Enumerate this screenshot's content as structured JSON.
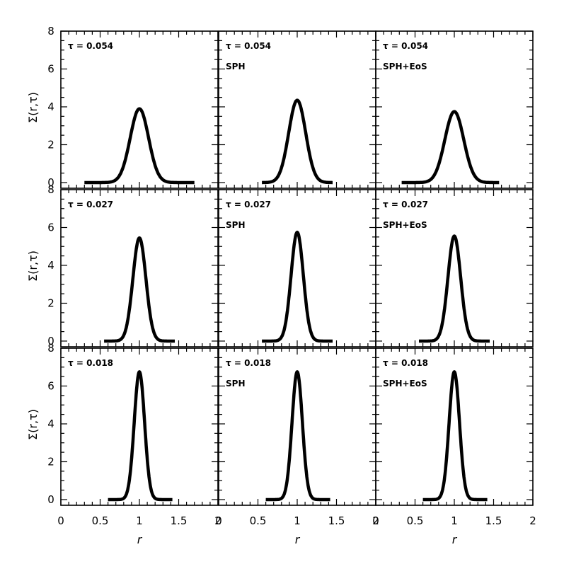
{
  "chart_data": {
    "type": "line",
    "layout": "3x3 grid, shared axes",
    "xlabel": "r",
    "ylabel": "Σ(r,τ)",
    "xlim": [
      0,
      2
    ],
    "ylim": [
      -0.3,
      8
    ],
    "x_ticks_major": [
      0,
      0.5,
      1,
      1.5,
      2
    ],
    "x_tick_labels": [
      "0",
      "0.5",
      "1",
      "1.5",
      "2"
    ],
    "y_ticks_major": [
      0,
      2,
      4,
      6,
      8
    ],
    "y_tick_labels": [
      "0",
      "2",
      "4",
      "6",
      "8"
    ],
    "grid": false,
    "legend": "none",
    "columns": [
      {
        "label": ""
      },
      {
        "label": "SPH"
      },
      {
        "label": "SPH+EoS"
      }
    ],
    "panels": [
      {
        "row": 0,
        "col": 0,
        "tau_label": "τ = 0.054",
        "method_label": "",
        "peak": 3.9,
        "sigma": 0.117,
        "xmin": 0.3,
        "xmax": 1.7
      },
      {
        "row": 0,
        "col": 1,
        "tau_label": "τ = 0.054",
        "method_label": "SPH",
        "peak": 4.35,
        "sigma": 0.108,
        "xmin": 0.55,
        "xmax": 1.45
      },
      {
        "row": 0,
        "col": 2,
        "tau_label": "τ = 0.054",
        "method_label": "SPH+EoS",
        "peak": 3.75,
        "sigma": 0.12,
        "xmin": 0.33,
        "xmax": 1.57
      },
      {
        "row": 1,
        "col": 0,
        "tau_label": "τ = 0.027",
        "method_label": "",
        "peak": 5.45,
        "sigma": 0.083,
        "xmin": 0.55,
        "xmax": 1.45
      },
      {
        "row": 1,
        "col": 1,
        "tau_label": "τ = 0.027",
        "method_label": "SPH",
        "peak": 5.75,
        "sigma": 0.078,
        "xmin": 0.55,
        "xmax": 1.45
      },
      {
        "row": 1,
        "col": 2,
        "tau_label": "τ = 0.027",
        "method_label": "SPH+EoS",
        "peak": 5.55,
        "sigma": 0.081,
        "xmin": 0.55,
        "xmax": 1.45
      },
      {
        "row": 2,
        "col": 0,
        "tau_label": "τ = 0.018",
        "method_label": "",
        "peak": 6.75,
        "sigma": 0.066,
        "xmin": 0.6,
        "xmax": 1.42
      },
      {
        "row": 2,
        "col": 1,
        "tau_label": "τ = 0.018",
        "method_label": "SPH",
        "peak": 6.75,
        "sigma": 0.066,
        "xmin": 0.6,
        "xmax": 1.42
      },
      {
        "row": 2,
        "col": 2,
        "tau_label": "τ = 0.018",
        "method_label": "SPH+EoS",
        "peak": 6.75,
        "sigma": 0.066,
        "xmin": 0.6,
        "xmax": 1.42
      }
    ],
    "series_description": "Σ(r,τ) profile (bell curve centred at r = 1) at each τ"
  }
}
